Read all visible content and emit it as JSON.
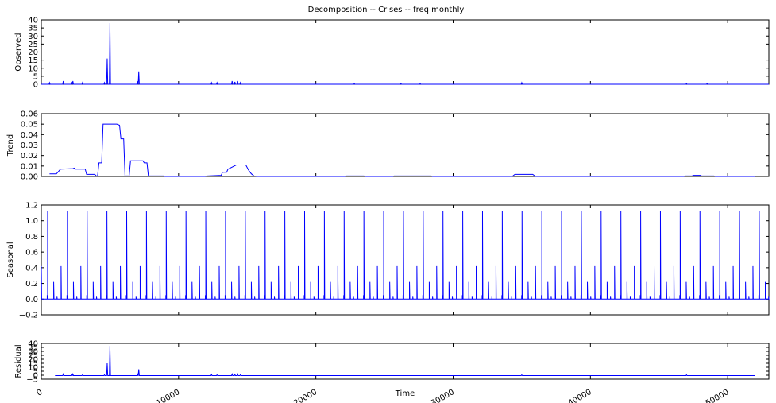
{
  "title": "Decomposition -- Crises -- freq monthly",
  "colors": {
    "series": "#0000ff",
    "axes": "#000000",
    "background": "#ffffff"
  },
  "chart_data": [
    {
      "type": "line",
      "name": "observed",
      "ylabel": "Observed",
      "xlim": [
        0,
        53000
      ],
      "ylim": [
        0,
        40
      ],
      "yticks": [
        "0",
        "5",
        "10",
        "15",
        "20",
        "25",
        "30",
        "35",
        "40"
      ],
      "grid": false,
      "baseline": 0,
      "spikes": [
        [
          600,
          1
        ],
        [
          1600,
          2
        ],
        [
          2200,
          1.5
        ],
        [
          2300,
          2
        ],
        [
          3000,
          1
        ],
        [
          4600,
          1
        ],
        [
          4800,
          16
        ],
        [
          5000,
          38
        ],
        [
          7000,
          2
        ],
        [
          7100,
          8
        ],
        [
          12400,
          1
        ],
        [
          12800,
          1
        ],
        [
          13900,
          2
        ],
        [
          14100,
          1.5
        ],
        [
          14300,
          2
        ],
        [
          14500,
          1
        ],
        [
          22800,
          0.5
        ],
        [
          26200,
          0.5
        ],
        [
          27600,
          0.5
        ],
        [
          35000,
          1
        ],
        [
          47000,
          0.5
        ],
        [
          48500,
          0.5
        ]
      ],
      "x_end": 53000
    },
    {
      "type": "line",
      "name": "trend",
      "ylabel": "Trend",
      "xlim": [
        0,
        53000
      ],
      "ylim": [
        0,
        0.06
      ],
      "yticks": [
        "0.00",
        "0.01",
        "0.02",
        "0.03",
        "0.04",
        "0.05",
        "0.06"
      ],
      "grid": false,
      "points": [
        [
          600,
          0.0025
        ],
        [
          1100,
          0.0025
        ],
        [
          1400,
          0.007
        ],
        [
          2300,
          0.0075
        ],
        [
          2400,
          0.008
        ],
        [
          2500,
          0.007
        ],
        [
          3200,
          0.007
        ],
        [
          3300,
          0.002
        ],
        [
          3900,
          0.002
        ],
        [
          4000,
          0.0005
        ],
        [
          4100,
          0.0005
        ],
        [
          4200,
          0.013
        ],
        [
          4400,
          0.013
        ],
        [
          4500,
          0.05
        ],
        [
          5500,
          0.05
        ],
        [
          5700,
          0.049
        ],
        [
          5800,
          0.036
        ],
        [
          6000,
          0.036
        ],
        [
          6100,
          0.0005
        ],
        [
          6400,
          0.0005
        ],
        [
          6500,
          0.015
        ],
        [
          7400,
          0.015
        ],
        [
          7500,
          0.013
        ],
        [
          7700,
          0.013
        ],
        [
          7800,
          0.0005
        ],
        [
          8900,
          0.0005
        ],
        [
          9000,
          0.0
        ],
        [
          11900,
          0.0
        ],
        [
          12100,
          0.0005
        ],
        [
          13100,
          0.001
        ],
        [
          13200,
          0.004
        ],
        [
          13500,
          0.004
        ],
        [
          13600,
          0.007
        ],
        [
          13900,
          0.009
        ],
        [
          14200,
          0.011
        ],
        [
          14900,
          0.011
        ],
        [
          15100,
          0.006
        ],
        [
          15300,
          0.0025
        ],
        [
          15500,
          0.0005
        ],
        [
          15700,
          0.0
        ],
        [
          22100,
          0.0
        ],
        [
          22200,
          0.0005
        ],
        [
          23500,
          0.0005
        ],
        [
          23600,
          0.0
        ],
        [
          25600,
          0.0
        ],
        [
          25700,
          0.0005
        ],
        [
          28400,
          0.0005
        ],
        [
          28500,
          0.0
        ],
        [
          34300,
          0.0
        ],
        [
          34500,
          0.002
        ],
        [
          35800,
          0.002
        ],
        [
          36000,
          0.0
        ],
        [
          46800,
          0.0
        ],
        [
          46900,
          0.0005
        ],
        [
          47400,
          0.0005
        ],
        [
          47500,
          0.001
        ],
        [
          48000,
          0.001
        ],
        [
          48100,
          0.0005
        ],
        [
          49000,
          0.0005
        ],
        [
          49100,
          0.0
        ],
        [
          52000,
          0.0
        ]
      ]
    },
    {
      "type": "line",
      "name": "seasonal",
      "ylabel": "Seasonal",
      "xlim": [
        0,
        53000
      ],
      "ylim": [
        -0.2,
        1.2
      ],
      "yticks": [
        "−0.2",
        "0.0",
        "0.2",
        "0.4",
        "0.6",
        "0.8",
        "1.0",
        "1.2"
      ],
      "grid": false,
      "period": 1440,
      "pattern": [
        [
          0,
          0.42
        ],
        [
          430,
          0.05
        ],
        [
          460,
          1.12
        ],
        [
          900,
          0.22
        ],
        [
          1140,
          0.03
        ]
      ],
      "baseline": 0.0,
      "x_end": 53000
    },
    {
      "type": "line",
      "name": "residual",
      "ylabel": "Residual",
      "xlim": [
        0,
        53000
      ],
      "ylim": [
        -5,
        40
      ],
      "yticks": [
        "−5",
        "0",
        "5",
        "10",
        "15",
        "20",
        "25",
        "30",
        "35",
        "40"
      ],
      "xticks": [
        "0",
        "10000",
        "20000",
        "30000",
        "40000",
        "50000"
      ],
      "xtick_values": [
        0,
        10000,
        20000,
        30000,
        40000,
        50000
      ],
      "xlabel": "Time",
      "grid": false,
      "baseline": -0.5,
      "x_start": 1000,
      "x_end": 52000,
      "spikes": [
        [
          1600,
          1.5
        ],
        [
          2200,
          1
        ],
        [
          2300,
          1.5
        ],
        [
          3000,
          0.5
        ],
        [
          4600,
          0.5
        ],
        [
          4800,
          15
        ],
        [
          5000,
          37
        ],
        [
          7000,
          1.5
        ],
        [
          7100,
          7.5
        ],
        [
          12400,
          1
        ],
        [
          12800,
          0.5
        ],
        [
          13900,
          1.5
        ],
        [
          14100,
          1
        ],
        [
          14300,
          1.5
        ],
        [
          14500,
          0.5
        ],
        [
          35000,
          0.5
        ],
        [
          47000,
          0.5
        ]
      ]
    }
  ]
}
